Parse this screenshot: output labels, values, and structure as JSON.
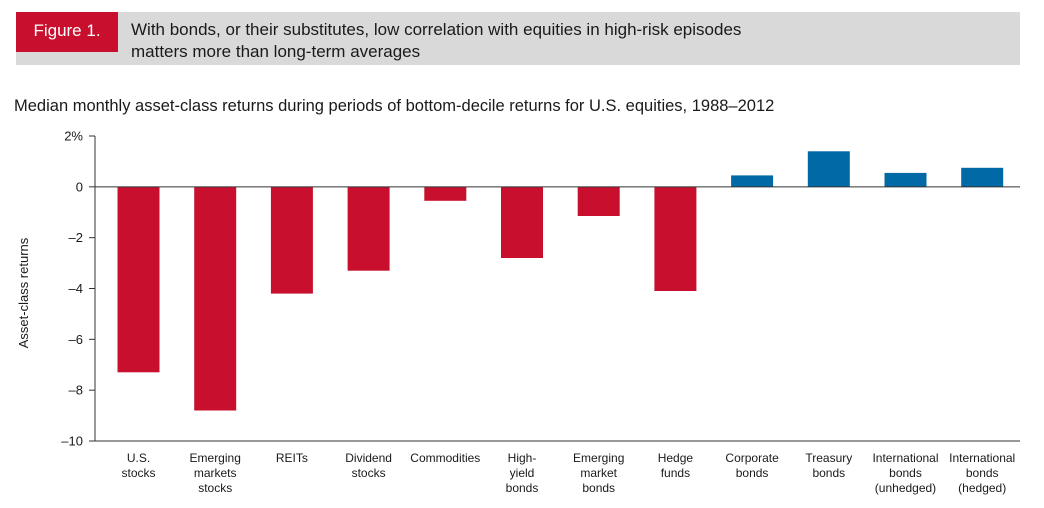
{
  "figure": {
    "label": "Figure 1.",
    "title_lines": [
      "With bonds, or their substitutes, low correlation with equities in high-risk episodes",
      "matters more than long-term averages"
    ]
  },
  "chart_data": {
    "type": "bar",
    "title": "Median monthly asset-class returns during periods of bottom-decile returns for U.S. equities, 1988–2012",
    "xlabel": "",
    "ylabel": "Asset-class returns",
    "ylim": [
      -10,
      2
    ],
    "yticks": [
      2,
      0,
      -2,
      -4,
      -6,
      -8,
      -10
    ],
    "ytick_labels": [
      "2%",
      "0",
      "–2",
      "–4",
      "–6",
      "–8",
      "–10"
    ],
    "grid": false,
    "categories": [
      "U.S. stocks",
      "Emerging markets stocks",
      "REITs",
      "Dividend stocks",
      "Commodities",
      "High-yield bonds",
      "Emerging market bonds",
      "Hedge funds",
      "Corporate bonds",
      "Treasury bonds",
      "International bonds (unhedged)",
      "International bonds (hedged)"
    ],
    "category_label_lines": [
      [
        "U.S.",
        "stocks"
      ],
      [
        "Emerging",
        "markets",
        "stocks"
      ],
      [
        "REITs"
      ],
      [
        "Dividend",
        "stocks"
      ],
      [
        "Commodities"
      ],
      [
        "High-",
        "yield",
        "bonds"
      ],
      [
        "Emerging",
        "market",
        "bonds"
      ],
      [
        "Hedge",
        "funds"
      ],
      [
        "Corporate",
        "bonds"
      ],
      [
        "Treasury",
        "bonds"
      ],
      [
        "International",
        "bonds",
        "(unhedged)"
      ],
      [
        "International",
        "bonds",
        "(hedged)"
      ]
    ],
    "values": [
      -7.3,
      -8.8,
      -4.2,
      -3.3,
      -0.55,
      -2.8,
      -1.15,
      -4.1,
      0.45,
      1.4,
      0.55,
      0.75
    ],
    "colors": {
      "negative": "#c8102e",
      "positive": "#0069a6",
      "axis": "#333333"
    }
  }
}
